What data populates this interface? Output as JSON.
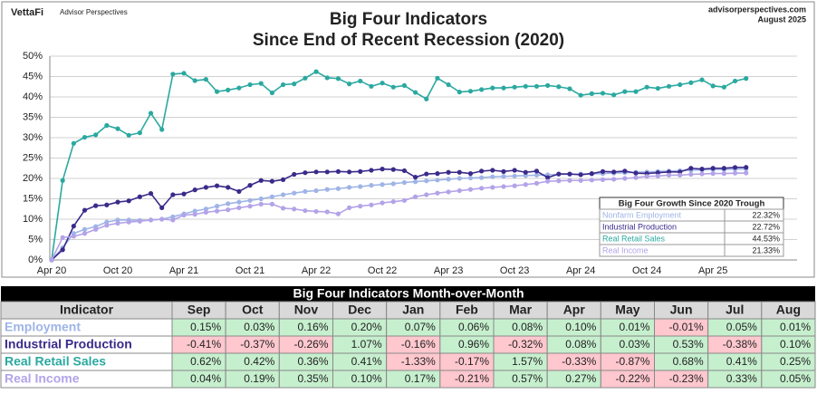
{
  "header": {
    "brand": "VettaFi",
    "brand_sub": "Advisor Perspectives",
    "site": "advisorperspectives.com",
    "date": "August 2025"
  },
  "chart_data": {
    "type": "line",
    "title": "Big Four Indicators",
    "subtitle": "Since  End of Recent Recession (2020)",
    "categories": [
      "Apr 20",
      null,
      null,
      null,
      null,
      null,
      "Oct 20",
      null,
      null,
      null,
      null,
      null,
      "Apr 21",
      null,
      null,
      null,
      null,
      null,
      "Oct 21",
      null,
      null,
      null,
      null,
      null,
      "Apr 22",
      null,
      null,
      null,
      null,
      null,
      "Oct 22",
      null,
      null,
      null,
      null,
      null,
      "Apr 23",
      null,
      null,
      null,
      null,
      null,
      "Oct 23",
      null,
      null,
      null,
      null,
      null,
      "Apr 24",
      null,
      null,
      null,
      null,
      null,
      "Oct 24",
      null,
      null,
      null,
      null,
      null,
      "Apr 25",
      null,
      null,
      null
    ],
    "ylim": [
      0,
      50
    ],
    "yticks": [
      {
        "value": 0,
        "label": "0%"
      },
      {
        "value": 5,
        "label": "5%"
      },
      {
        "value": 10,
        "label": "10%"
      },
      {
        "value": 15,
        "label": "15%"
      },
      {
        "value": 20,
        "label": "20%"
      },
      {
        "value": 25,
        "label": "25%"
      },
      {
        "value": 30,
        "label": "30%"
      },
      {
        "value": 35,
        "label": "35%"
      },
      {
        "value": 40,
        "label": "40%"
      },
      {
        "value": 45,
        "label": "45%"
      },
      {
        "value": 50,
        "label": "50%"
      }
    ],
    "grid": true,
    "series": [
      {
        "name": "Nonfarm Employment",
        "color": "#9fb4e6",
        "values": [
          0,
          3,
          6.5,
          7.5,
          8.2,
          9.3,
          9.8,
          9.8,
          9.7,
          9.8,
          10,
          10.6,
          11.3,
          12,
          12.5,
          13.2,
          13.8,
          14.2,
          14.6,
          15,
          15.5,
          16,
          16.4,
          16.8,
          17,
          17.3,
          17.5,
          17.8,
          18,
          18.3,
          18.5,
          18.7,
          19,
          19.2,
          19.4,
          19.6,
          19.8,
          20,
          20.1,
          20.2,
          20.4,
          20.5,
          20.6,
          20.7,
          20.8,
          20.9,
          21,
          21,
          21.1,
          21.1,
          21.2,
          21.3,
          21.4,
          21.5,
          21.6,
          21.7,
          21.8,
          21.9,
          22,
          22.1,
          22.2,
          22.2,
          22.3,
          22.32
        ]
      },
      {
        "name": "Industrial Production",
        "color": "#3b2a8a",
        "values": [
          0,
          2.5,
          8.3,
          12.2,
          13.3,
          13.5,
          14.2,
          14.5,
          15.5,
          16.3,
          12.8,
          16,
          16.2,
          17.2,
          17.8,
          18.2,
          17.8,
          16.8,
          18.3,
          19.5,
          19.3,
          19.7,
          21,
          21.4,
          21.6,
          21.6,
          21.7,
          21.6,
          21.7,
          22,
          22.3,
          22.2,
          21.9,
          20.3,
          21.1,
          21.2,
          21.5,
          21.5,
          21.2,
          21.8,
          22,
          21.7,
          22,
          21.5,
          21.8,
          20.2,
          21.1,
          21.1,
          20.9,
          21.2,
          21.7,
          21.6,
          21.8,
          21.3,
          21.2,
          21.4,
          21.6,
          21.6,
          22.5,
          22.3,
          22.5,
          22.5,
          22.7,
          22.72
        ]
      },
      {
        "name": "Real Retail Sales",
        "color": "#2aa9a0",
        "values": [
          0,
          19.5,
          28.6,
          30.1,
          30.7,
          33,
          32.2,
          30.6,
          31.2,
          36,
          32,
          45.6,
          45.8,
          44,
          44.3,
          41.3,
          41.7,
          42.2,
          43,
          43.3,
          41,
          43,
          43.2,
          44.6,
          46.2,
          44.7,
          44.5,
          43.2,
          43.9,
          42.6,
          43.4,
          42.4,
          42.8,
          41.1,
          39.5,
          44.6,
          43,
          41.2,
          41.4,
          41.8,
          42.2,
          42.2,
          42.4,
          42.6,
          42.6,
          42.8,
          42.5,
          42,
          40.4,
          40.8,
          40.9,
          40.5,
          41.3,
          41.3,
          42.4,
          42.1,
          42.6,
          43,
          43.5,
          44.2,
          42.7,
          42.4,
          43.9,
          44.53
        ]
      },
      {
        "name": "Real Income",
        "color": "#b3a3e8",
        "values": [
          0,
          5.5,
          5.8,
          6.5,
          7.5,
          8.5,
          9,
          9.3,
          9.5,
          9.8,
          10,
          9.8,
          11,
          11.2,
          11.7,
          12,
          12.3,
          12.8,
          13.2,
          13.7,
          13.7,
          12.7,
          12.5,
          12.1,
          11.9,
          11.8,
          11.3,
          12.8,
          13.2,
          13.5,
          14,
          14.3,
          14.6,
          15.5,
          16,
          16.4,
          16.7,
          17,
          17.3,
          17.6,
          17.8,
          18,
          18.2,
          18.5,
          18.8,
          19.3,
          19.4,
          19.5,
          19.5,
          19.6,
          19.7,
          19.8,
          20,
          20.2,
          20.5,
          20.6,
          20.8,
          20.8,
          21,
          21.1,
          21.2,
          21.2,
          21.3,
          21.33
        ]
      }
    ],
    "summary": {
      "title": "Big Four Growth Since 2020 Trough",
      "values": [
        "22.32%",
        "22.72%",
        "44.53%",
        "21.33%"
      ]
    }
  },
  "table": {
    "title": "Big Four Indicators Month-over-Month",
    "header": [
      "Indicator",
      "Sep",
      "Oct",
      "Nov",
      "Dec",
      "Jan",
      "Feb",
      "Mar",
      "Apr",
      "May",
      "Jun",
      "Jul",
      "Aug"
    ],
    "rows": [
      {
        "name": "Employment",
        "color": "#9fb4e6",
        "cells": [
          "0.15%",
          "0.03%",
          "0.16%",
          "0.20%",
          "0.07%",
          "0.06%",
          "0.08%",
          "0.10%",
          "0.01%",
          "-0.01%",
          "0.05%",
          "0.01%"
        ]
      },
      {
        "name": "Industrial Production",
        "color": "#3b2a8a",
        "cells": [
          "-0.41%",
          "-0.37%",
          "-0.26%",
          "1.07%",
          "-0.16%",
          "0.96%",
          "-0.32%",
          "0.08%",
          "0.03%",
          "0.53%",
          "-0.38%",
          "0.10%"
        ]
      },
      {
        "name": "Real Retail Sales",
        "color": "#2aa9a0",
        "cells": [
          "0.62%",
          "0.42%",
          "0.36%",
          "0.41%",
          "-1.33%",
          "-0.17%",
          "1.57%",
          "-0.33%",
          "-0.87%",
          "0.68%",
          "0.41%",
          "0.25%"
        ]
      },
      {
        "name": "Real Income",
        "color": "#b3a3e8",
        "cells": [
          "0.04%",
          "0.19%",
          "0.35%",
          "0.10%",
          "0.17%",
          "-0.21%",
          "0.57%",
          "0.27%",
          "-0.22%",
          "-0.23%",
          "0.33%",
          "0.05%"
        ]
      }
    ]
  }
}
